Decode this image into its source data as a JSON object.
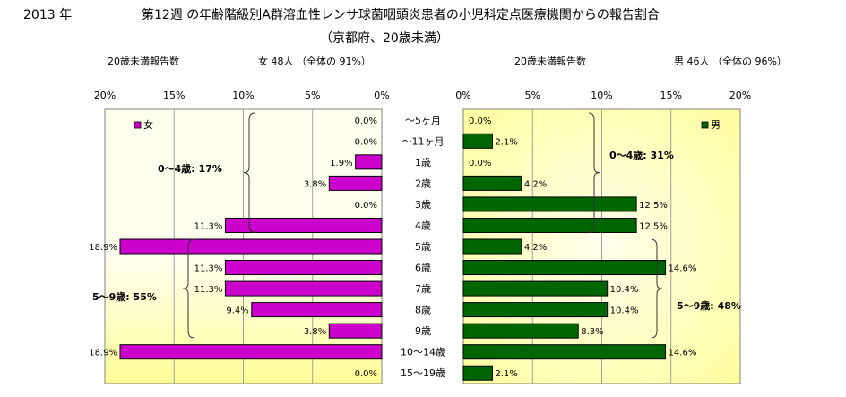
{
  "header": {
    "year": "2013 年",
    "title_line1": "第12週 の年齢階級別A群溶血性レンサ球菌咽頭炎患者の小児科定点医療機関からの報告割合",
    "title_line2": "（京都府、20歳未満）"
  },
  "female": {
    "subtitle_left": "20歳未満報告数",
    "subtitle_right": "女  48人 （全体の  91%）",
    "legend": "女",
    "ticks": [
      "20%",
      "15%",
      "10%",
      "5%",
      "0%"
    ],
    "brace_labels": [
      "0～4歳: 17%",
      "5～9歳: 55%"
    ]
  },
  "male": {
    "subtitle_left": "20歳未満報告数",
    "subtitle_right": "男  46人 （全体の  96%）",
    "legend": "男",
    "ticks": [
      "0%",
      "5%",
      "10%",
      "15%",
      "20%"
    ],
    "brace_labels": [
      "0～4歳: 31%",
      "5～9歳: 48%"
    ]
  },
  "colors": {
    "female_bar": "#cc00cc",
    "male_bar": "#006600",
    "plot_bg_edge": "#ffff99",
    "plot_bg_center": "#ffffee"
  },
  "chart_data": [
    {
      "type": "bar",
      "orientation": "horizontal",
      "direction": "reversed",
      "categories": [
        "～5ヶ月",
        "～11ヶ月",
        "1歳",
        "2歳",
        "3歳",
        "4歳",
        "5歳",
        "6歳",
        "7歳",
        "8歳",
        "9歳",
        "10～14歳",
        "15～19歳"
      ],
      "series": [
        {
          "name": "女",
          "values": [
            0.0,
            0.0,
            1.9,
            3.8,
            0.0,
            11.3,
            18.9,
            11.3,
            11.3,
            9.4,
            3.8,
            18.9,
            0.0
          ]
        }
      ],
      "value_labels": [
        "0.0%",
        "0.0%",
        "1.9%",
        "3.8%",
        "0.0%",
        "11.3%",
        "18.9%",
        "11.3%",
        "11.3%",
        "9.4%",
        "3.8%",
        "18.9%",
        "0.0%"
      ],
      "xlim": [
        0,
        20
      ],
      "unit": "%",
      "legend_position": "top-left"
    },
    {
      "type": "bar",
      "orientation": "horizontal",
      "categories": [
        "～5ヶ月",
        "～11ヶ月",
        "1歳",
        "2歳",
        "3歳",
        "4歳",
        "5歳",
        "6歳",
        "7歳",
        "8歳",
        "9歳",
        "10～14歳",
        "15～19歳"
      ],
      "series": [
        {
          "name": "男",
          "values": [
            0.0,
            2.1,
            0.0,
            4.2,
            12.5,
            12.5,
            4.2,
            14.6,
            10.4,
            10.4,
            8.3,
            14.6,
            2.1
          ]
        }
      ],
      "value_labels": [
        "0.0%",
        "2.1%",
        "0.0%",
        "4.2%",
        "12.5%",
        "12.5%",
        "4.2%",
        "14.6%",
        "10.4%",
        "10.4%",
        "8.3%",
        "14.6%",
        "2.1%"
      ],
      "xlim": [
        0,
        20
      ],
      "unit": "%",
      "legend_position": "top-right"
    }
  ]
}
